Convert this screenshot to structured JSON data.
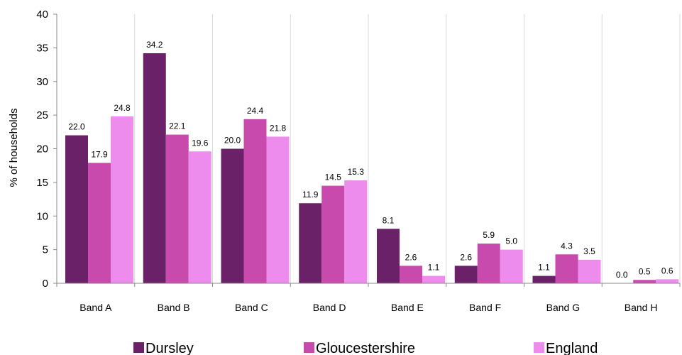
{
  "chart_data": {
    "type": "bar",
    "categories": [
      "Band A",
      "Band B",
      "Band C",
      "Band D",
      "Band E",
      "Band F",
      "Band G",
      "Band H"
    ],
    "series": [
      {
        "name": "Dursley",
        "color": "#6b2167",
        "values": [
          22.0,
          34.2,
          20.0,
          11.9,
          8.1,
          2.6,
          1.1,
          0.0
        ]
      },
      {
        "name": "Gloucestershire",
        "color": "#c84aad",
        "values": [
          17.9,
          22.1,
          24.4,
          14.5,
          2.6,
          5.9,
          4.3,
          0.5
        ]
      },
      {
        "name": "England",
        "color": "#ee8cee",
        "values": [
          24.8,
          19.6,
          21.8,
          15.3,
          1.1,
          5.0,
          3.5,
          0.6
        ]
      }
    ],
    "data_labels": [
      [
        "22.0",
        "34.2",
        "20.0",
        "11.9",
        "8.1",
        "2.6",
        "1.1",
        "0.0"
      ],
      [
        "17.9",
        "22.1",
        "24.4",
        "14.5",
        "2.6",
        "5.9",
        "4.3",
        "0.5"
      ],
      [
        "24.8",
        "19.6",
        "21.8",
        "15.3",
        "1.1",
        "5.0",
        "3.5",
        "0.6"
      ]
    ],
    "title": "",
    "xlabel": "",
    "ylabel": "% of households",
    "ylim": [
      0,
      40
    ],
    "yticks": [
      "0",
      "5",
      "10",
      "15",
      "20",
      "25",
      "30",
      "35",
      "40"
    ],
    "grid": "vertical category separators",
    "legend": "bottom"
  }
}
